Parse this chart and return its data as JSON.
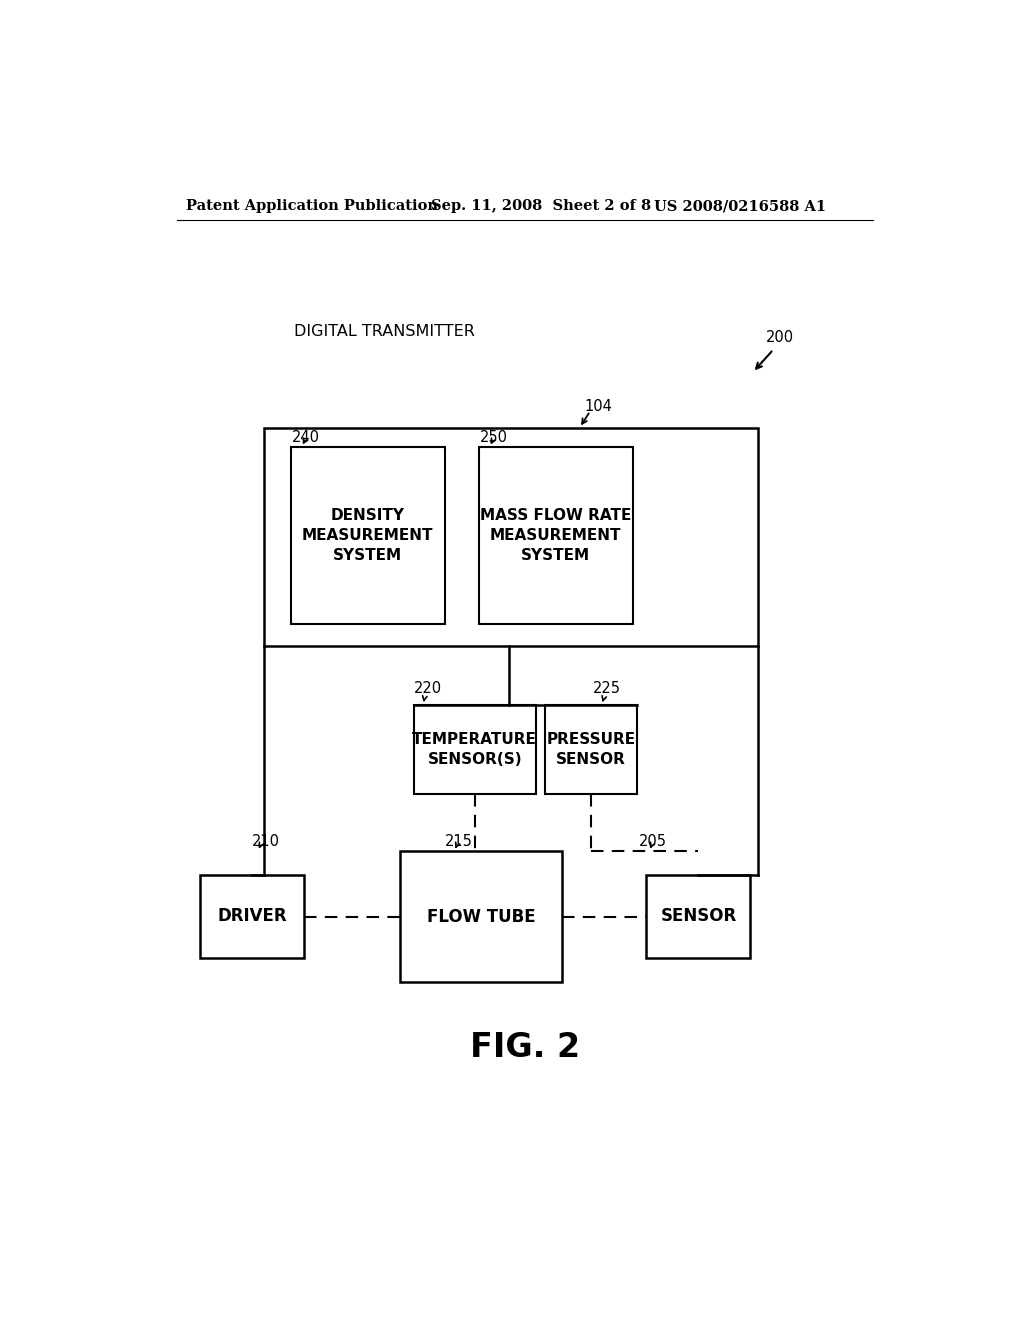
{
  "bg_color": "#ffffff",
  "header_left": "Patent Application Publication",
  "header_mid": "Sep. 11, 2008  Sheet 2 of 8",
  "header_right": "US 2008/0216588 A1",
  "label_digital_transmitter": "DIGITAL TRANSMITTER",
  "label_200": "200",
  "label_104": "104",
  "label_240": "240",
  "label_250": "250",
  "label_220": "220",
  "label_225": "225",
  "label_210": "210",
  "label_215": "215",
  "label_205": "205",
  "box_density_lines": [
    "DENSITY",
    "MEASUREMENT",
    "SYSTEM"
  ],
  "box_massflow_lines": [
    "MASS FLOW RATE",
    "MEASUREMENT",
    "SYSTEM"
  ],
  "box_temp_lines": [
    "TEMPERATURE",
    "SENSOR(S)"
  ],
  "box_pressure_lines": [
    "PRESSURE",
    "SENSOR"
  ],
  "box_driver": "DRIVER",
  "box_flowtube": "FLOW TUBE",
  "box_sensor": "SENSOR",
  "fig_label": "FIG. 2"
}
